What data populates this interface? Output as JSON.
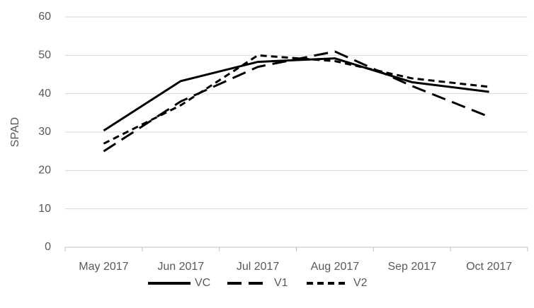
{
  "chart_data": {
    "type": "line",
    "y_label": "SPAD",
    "categories": [
      "May 2017",
      "Jun 2017",
      "Jul 2017",
      "Aug 2017",
      "Sep 2017",
      "Oct 2017"
    ],
    "series": [
      {
        "name": "VC",
        "color": "#000000",
        "dash": "solid",
        "values": [
          30.4,
          43.3,
          48.3,
          49.2,
          43,
          40.5
        ]
      },
      {
        "name": "V1",
        "color": "#000000",
        "dash": "long",
        "values": [
          25,
          38,
          47,
          51,
          42,
          34
        ]
      },
      {
        "name": "V2",
        "color": "#000000",
        "dash": "short",
        "values": [
          27,
          37,
          50,
          48.5,
          44,
          41.8
        ]
      }
    ],
    "ylim": [
      0,
      60
    ],
    "yticks": [
      0,
      10,
      20,
      30,
      40,
      50,
      60
    ],
    "grid": true,
    "legend": "bottom"
  }
}
